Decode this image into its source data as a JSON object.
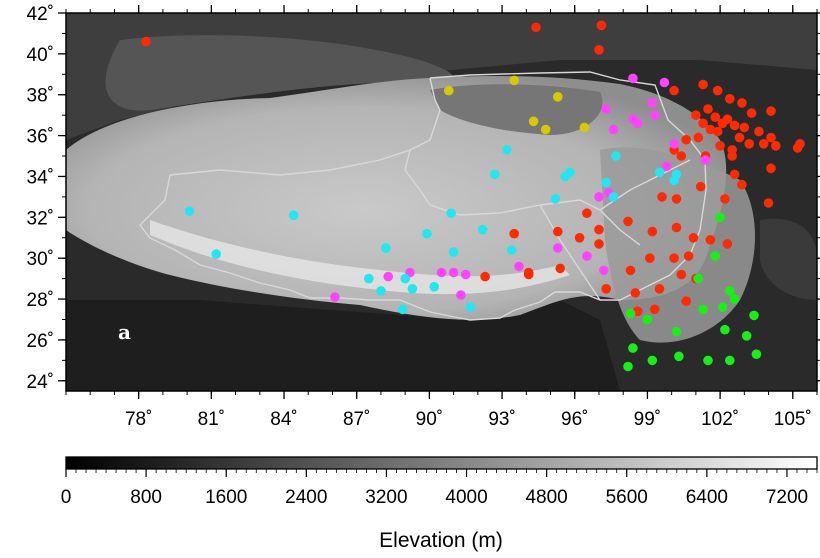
{
  "panel_label": "a",
  "map": {
    "lon_range": [
      75,
      106
    ],
    "lat_range": [
      23.5,
      42
    ],
    "lon_ticks": [
      78,
      81,
      84,
      87,
      90,
      93,
      96,
      99,
      102,
      105
    ],
    "lat_ticks": [
      24,
      26,
      28,
      30,
      32,
      34,
      36,
      38,
      40,
      42
    ],
    "lon_tick_labels": [
      "78˚",
      "81˚",
      "84˚",
      "87˚",
      "90˚",
      "93˚",
      "96˚",
      "99˚",
      "102˚",
      "105˚"
    ],
    "lat_tick_labels": [
      "24˚",
      "26˚",
      "28˚",
      "30˚",
      "32˚",
      "34˚",
      "36˚",
      "38˚",
      "40˚",
      "42˚"
    ]
  },
  "colorbar": {
    "title": "Elevation (m)",
    "range": [
      0,
      7500
    ],
    "ticks": [
      0,
      800,
      1600,
      2400,
      3200,
      4000,
      4800,
      5600,
      6400,
      7200
    ],
    "tick_labels": [
      "0",
      "800",
      "1600",
      "2400",
      "3200",
      "4000",
      "4800",
      "5600",
      "6400",
      "7200"
    ]
  },
  "colors": {
    "red": "#ff2a00",
    "magenta": "#ff44ff",
    "cyan": "#22e6f0",
    "yellow": "#d8c800",
    "green": "#16f016",
    "border": "#d8d8d8"
  },
  "stations": {
    "red": [
      [
        78.3,
        40.6
      ],
      [
        94.4,
        41.3
      ],
      [
        97.1,
        41.4
      ],
      [
        97.0,
        40.2
      ],
      [
        100.1,
        38.2
      ],
      [
        101.3,
        38.5
      ],
      [
        101.9,
        38.2
      ],
      [
        102.4,
        37.8
      ],
      [
        102.9,
        37.6
      ],
      [
        103.3,
        37.1
      ],
      [
        104.1,
        37.2
      ],
      [
        101.0,
        37.0
      ],
      [
        101.3,
        36.6
      ],
      [
        101.5,
        37.3
      ],
      [
        101.8,
        36.9
      ],
      [
        102.1,
        36.6
      ],
      [
        102.3,
        36.8
      ],
      [
        101.6,
        36.3
      ],
      [
        101.9,
        36.2
      ],
      [
        102.6,
        36.5
      ],
      [
        103.0,
        36.4
      ],
      [
        102.8,
        35.9
      ],
      [
        103.6,
        36.2
      ],
      [
        103.8,
        35.6
      ],
      [
        104.1,
        35.9
      ],
      [
        104.3,
        35.5
      ],
      [
        105.2,
        35.4
      ],
      [
        105.3,
        35.6
      ],
      [
        100.6,
        35.8
      ],
      [
        101.1,
        35.9
      ],
      [
        102.0,
        35.5
      ],
      [
        102.5,
        35.3
      ],
      [
        103.2,
        35.6
      ],
      [
        102.5,
        35.0
      ],
      [
        100.4,
        35.0
      ],
      [
        100.1,
        35.3
      ],
      [
        101.4,
        35.0
      ],
      [
        102.6,
        34.1
      ],
      [
        104.1,
        34.4
      ],
      [
        102.9,
        33.6
      ],
      [
        101.2,
        33.5
      ],
      [
        100.2,
        32.9
      ],
      [
        99.6,
        33.0
      ],
      [
        102.2,
        32.9
      ],
      [
        104.0,
        32.7
      ],
      [
        96.5,
        32.2
      ],
      [
        97.0,
        31.4
      ],
      [
        98.2,
        31.8
      ],
      [
        99.2,
        31.3
      ],
      [
        100.9,
        31.0
      ],
      [
        101.6,
        30.9
      ],
      [
        96.2,
        31.0
      ],
      [
        97.0,
        30.7
      ],
      [
        98.3,
        29.4
      ],
      [
        99.1,
        30.0
      ],
      [
        100.1,
        30.0
      ],
      [
        102.3,
        30.7
      ],
      [
        93.5,
        31.2
      ],
      [
        95.3,
        31.3
      ],
      [
        92.3,
        29.1
      ],
      [
        94.1,
        29.2
      ],
      [
        94.1,
        29.3
      ],
      [
        95.4,
        29.5
      ],
      [
        97.3,
        28.5
      ],
      [
        98.5,
        28.3
      ],
      [
        101.0,
        29.0
      ],
      [
        99.5,
        28.5
      ],
      [
        100.6,
        27.9
      ],
      [
        98.6,
        27.4
      ],
      [
        100.7,
        30.1
      ],
      [
        99.3,
        27.5
      ],
      [
        100.4,
        29.2
      ],
      [
        100.2,
        31.5
      ]
    ],
    "magenta": [
      [
        98.4,
        38.8
      ],
      [
        99.7,
        38.6
      ],
      [
        99.2,
        37.6
      ],
      [
        99.3,
        37.0
      ],
      [
        98.4,
        36.8
      ],
      [
        97.3,
        37.3
      ],
      [
        97.6,
        36.3
      ],
      [
        98.6,
        36.6
      ],
      [
        100.1,
        35.6
      ],
      [
        99.8,
        34.5
      ],
      [
        101.4,
        34.8
      ],
      [
        97.4,
        33.2
      ],
      [
        97.0,
        33.0
      ],
      [
        95.3,
        30.5
      ],
      [
        96.5,
        30.1
      ],
      [
        97.2,
        29.4
      ],
      [
        88.3,
        29.1
      ],
      [
        89.2,
        29.3
      ],
      [
        90.5,
        29.3
      ],
      [
        91.0,
        29.3
      ],
      [
        91.5,
        29.2
      ],
      [
        86.1,
        28.1
      ],
      [
        91.3,
        28.2
      ],
      [
        93.7,
        29.6
      ]
    ],
    "cyan": [
      [
        80.1,
        32.3
      ],
      [
        81.2,
        30.2
      ],
      [
        84.4,
        32.1
      ],
      [
        87.5,
        29.0
      ],
      [
        88.0,
        28.4
      ],
      [
        88.2,
        30.5
      ],
      [
        89.0,
        29.0
      ],
      [
        89.3,
        28.5
      ],
      [
        89.9,
        31.2
      ],
      [
        90.2,
        28.6
      ],
      [
        90.9,
        32.2
      ],
      [
        91.0,
        30.3
      ],
      [
        91.7,
        27.6
      ],
      [
        92.2,
        31.4
      ],
      [
        93.2,
        35.3
      ],
      [
        92.7,
        34.1
      ],
      [
        93.4,
        30.4
      ],
      [
        95.2,
        32.9
      ],
      [
        95.6,
        34.0
      ],
      [
        95.8,
        34.2
      ],
      [
        97.3,
        33.7
      ],
      [
        97.6,
        33.0
      ],
      [
        97.7,
        35.0
      ],
      [
        99.5,
        34.2
      ],
      [
        100.1,
        33.8
      ],
      [
        100.2,
        34.1
      ],
      [
        88.9,
        27.5
      ]
    ],
    "yellow": [
      [
        90.8,
        38.2
      ],
      [
        93.5,
        38.7
      ],
      [
        95.3,
        37.9
      ],
      [
        94.3,
        36.7
      ],
      [
        94.8,
        36.3
      ],
      [
        96.4,
        36.4
      ]
    ],
    "green": [
      [
        98.3,
        27.3
      ],
      [
        98.4,
        25.6
      ],
      [
        98.2,
        24.7
      ],
      [
        99.0,
        27.0
      ],
      [
        99.2,
        25.0
      ],
      [
        100.2,
        26.4
      ],
      [
        100.3,
        25.2
      ],
      [
        101.1,
        29.0
      ],
      [
        101.3,
        27.5
      ],
      [
        101.5,
        25.0
      ],
      [
        101.8,
        30.1
      ],
      [
        102.0,
        32.0
      ],
      [
        102.1,
        27.6
      ],
      [
        102.2,
        26.5
      ],
      [
        102.4,
        28.4
      ],
      [
        102.6,
        28.0
      ],
      [
        102.4,
        25.0
      ],
      [
        103.1,
        26.2
      ],
      [
        103.5,
        25.3
      ],
      [
        103.4,
        27.2
      ]
    ]
  }
}
